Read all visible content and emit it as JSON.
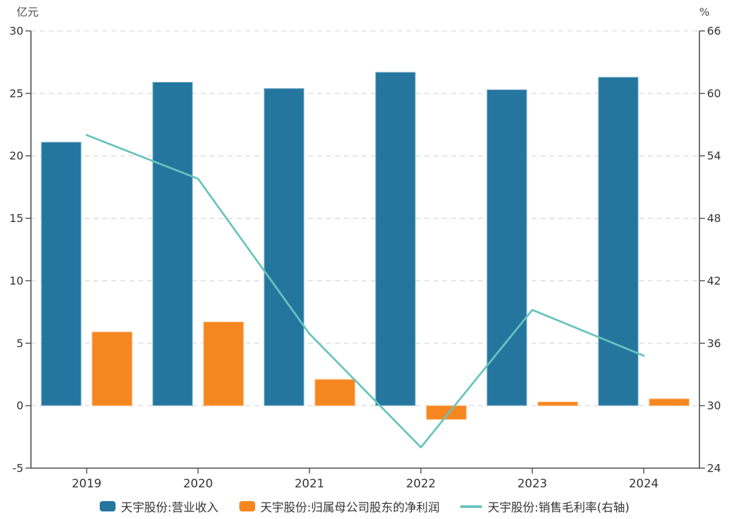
{
  "chart_data": {
    "type": "combo",
    "title": "",
    "categories": [
      "2019",
      "2020",
      "2021",
      "2022",
      "2023",
      "2024"
    ],
    "series": [
      {
        "name": "天宇股份:营业收入",
        "type": "bar",
        "axis": "left",
        "unit": "亿元",
        "color": "#24769f",
        "edge_color": "#a5c8db",
        "values": [
          21.1,
          25.9,
          25.4,
          26.7,
          25.3,
          26.3
        ]
      },
      {
        "name": "天宇股份:归属母公司股东的净利润",
        "type": "bar",
        "axis": "left",
        "unit": "亿元",
        "color": "#f6861f",
        "edge_color": "#f9bd80",
        "values": [
          5.9,
          6.7,
          2.1,
          -1.1,
          0.3,
          0.55
        ]
      },
      {
        "name": "天宇股份:销售毛利率(右轴)",
        "type": "line",
        "axis": "right",
        "unit": "%",
        "color": "#68c4bd",
        "values": [
          56.0,
          51.8,
          36.9,
          26.0,
          39.2,
          34.8
        ]
      }
    ],
    "left_axis": {
      "title": "亿元",
      "min": -5,
      "max": 30,
      "tick_step": 5,
      "ticks": [
        30,
        25,
        20,
        15,
        10,
        5,
        0,
        -5
      ]
    },
    "right_axis": {
      "title": "%",
      "min": 24,
      "max": 66,
      "tick_step": 6,
      "ticks": [
        66,
        60,
        54,
        48,
        42,
        36,
        30,
        24
      ]
    },
    "grid": "horizontal dashed",
    "grid_color": "#d9d9d9",
    "axis_color": "#4a4a4a",
    "tick_label_color": "#333333",
    "legend_position": "bottom"
  }
}
